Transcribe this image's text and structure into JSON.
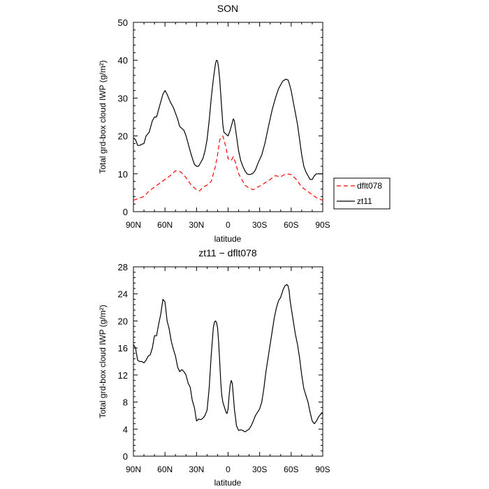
{
  "chart_data": [
    {
      "type": "line",
      "title": "SON",
      "xlabel": "latitude",
      "ylabel": "Total grd-box cloud IWP (g/m²)",
      "xlim": [
        -90,
        90
      ],
      "ylim": [
        0,
        50
      ],
      "xticks": [
        -90,
        -60,
        -30,
        0,
        30,
        60,
        90
      ],
      "xtick_labels": [
        "90N",
        "60N",
        "30N",
        "0",
        "30S",
        "60S",
        "90S"
      ],
      "yticks": [
        0,
        10,
        20,
        30,
        40,
        50
      ],
      "ytick_labels": [
        "0",
        "10",
        "20",
        "30",
        "40",
        "50"
      ],
      "legend_position": "right",
      "series": [
        {
          "name": "dflt078",
          "color": "#ff0000",
          "dash": "dashed",
          "x": [
            -90,
            -85,
            -80,
            -75,
            -70,
            -65,
            -60,
            -55,
            -50,
            -45,
            -40,
            -35,
            -30,
            -27,
            -24,
            -20,
            -16,
            -12,
            -10,
            -8,
            -5,
            -2,
            0,
            3,
            5,
            7,
            10,
            13,
            16,
            20,
            24,
            28,
            32,
            36,
            40,
            45,
            50,
            55,
            60,
            65,
            70,
            75,
            80,
            85,
            90
          ],
          "y": [
            3,
            3.5,
            4,
            5.5,
            6.5,
            7.5,
            8.5,
            9.5,
            10.8,
            10.5,
            9,
            7,
            5.8,
            5.5,
            6.5,
            7,
            8,
            12,
            15,
            19,
            20,
            17,
            14,
            13.5,
            14.5,
            13,
            10,
            8.5,
            7,
            6.2,
            5.8,
            6.5,
            7,
            7.8,
            8.5,
            9.5,
            9.2,
            10,
            9.8,
            8.5,
            6.5,
            5.5,
            4.5,
            3.5,
            3
          ]
        },
        {
          "name": "zt11",
          "color": "#000000",
          "dash": "solid",
          "x": [
            -90,
            -88,
            -86,
            -84,
            -82,
            -80,
            -78,
            -75,
            -72,
            -70,
            -68,
            -65,
            -62,
            -60,
            -58,
            -55,
            -52,
            -50,
            -48,
            -46,
            -44,
            -42,
            -40,
            -38,
            -35,
            -32,
            -30,
            -28,
            -26,
            -24,
            -22,
            -20,
            -18,
            -16,
            -14,
            -12,
            -11,
            -10,
            -9,
            -8,
            -7,
            -6,
            -5,
            -4,
            -2,
            0,
            2,
            4,
            5,
            6,
            8,
            10,
            12,
            14,
            16,
            18,
            20,
            22,
            24,
            26,
            28,
            30,
            32,
            35,
            38,
            40,
            42,
            45,
            48,
            50,
            52,
            55,
            57,
            58,
            60,
            62,
            64,
            66,
            68,
            70,
            72,
            74,
            76,
            78,
            80,
            82,
            84,
            86,
            88,
            90
          ],
          "y": [
            19.5,
            19,
            17.5,
            17.5,
            17.8,
            18,
            20,
            21,
            24,
            25,
            25,
            28,
            31,
            32,
            31,
            29,
            27.5,
            26,
            24.5,
            22.5,
            22,
            21.5,
            20,
            18,
            15,
            12.5,
            12,
            12,
            13,
            14,
            16,
            19,
            24,
            30,
            35,
            39,
            40,
            39.8,
            38,
            35,
            31,
            27,
            23,
            21,
            20.5,
            20,
            21.5,
            23.5,
            24.5,
            24,
            20,
            16,
            13.5,
            12,
            10.8,
            10,
            9.8,
            9.9,
            10.2,
            11,
            12.5,
            13.8,
            15,
            18,
            22,
            24.5,
            27,
            30,
            32.5,
            33.5,
            34.5,
            35,
            34.8,
            34,
            32,
            29,
            26,
            23,
            19,
            15,
            12,
            10.5,
            9.5,
            8.5,
            8.5,
            9.5,
            10,
            10,
            10,
            10
          ]
        }
      ]
    },
    {
      "type": "line",
      "title": "zt11 − dflt078",
      "xlabel": "latitude",
      "ylabel": "Total grd-box cloud IWP (g/m²)",
      "xlim": [
        -90,
        90
      ],
      "ylim": [
        0,
        28
      ],
      "xticks": [
        -90,
        -60,
        -30,
        0,
        30,
        60,
        90
      ],
      "xtick_labels": [
        "90N",
        "60N",
        "30N",
        "0",
        "30S",
        "60S",
        "90S"
      ],
      "yticks": [
        0,
        4,
        8,
        12,
        16,
        20,
        24,
        28
      ],
      "ytick_labels": [
        "0",
        "4",
        "8",
        "12",
        "16",
        "20",
        "24",
        "28"
      ],
      "series": [
        {
          "color": "#000000",
          "dash": "solid",
          "x": [
            -90,
            -88,
            -86,
            -84,
            -82,
            -80,
            -78,
            -76,
            -74,
            -72,
            -70,
            -68,
            -66,
            -64,
            -62,
            -60,
            -58,
            -56,
            -54,
            -52,
            -50,
            -48,
            -46,
            -44,
            -42,
            -40,
            -38,
            -36,
            -34,
            -32,
            -30,
            -28,
            -26,
            -24,
            -22,
            -20,
            -18,
            -16,
            -14,
            -13,
            -12,
            -11,
            -10,
            -9,
            -8,
            -7,
            -6,
            -5,
            -4,
            -3,
            -2,
            -1,
            0,
            1,
            2,
            3,
            4,
            5,
            6,
            7,
            8,
            10,
            12,
            14,
            16,
            18,
            20,
            22,
            24,
            26,
            28,
            30,
            32,
            34,
            36,
            38,
            40,
            42,
            44,
            46,
            48,
            50,
            52,
            54,
            56,
            57,
            58,
            59,
            60,
            62,
            64,
            66,
            68,
            70,
            72,
            74,
            76,
            78,
            80,
            82,
            84,
            86,
            88,
            90
          ],
          "y": [
            16.5,
            16,
            14.2,
            14,
            14,
            13.8,
            14.2,
            14.8,
            15,
            16,
            17.8,
            17.8,
            19.5,
            21,
            23.2,
            22.8,
            20,
            18.8,
            17,
            15.8,
            14.8,
            13.2,
            12.5,
            12.8,
            12.5,
            12,
            10.8,
            10.2,
            8.2,
            7.2,
            5.2,
            5.5,
            5.4,
            5.6,
            6,
            6.8,
            10,
            15,
            19,
            19.8,
            20,
            19.8,
            19,
            17,
            14,
            11,
            9,
            8,
            7.5,
            7,
            6.5,
            6.3,
            7,
            9,
            10.5,
            11.2,
            10.8,
            9,
            7,
            5.8,
            4.5,
            3.8,
            3.9,
            3.8,
            3.6,
            3.8,
            4,
            4.5,
            5.2,
            6,
            6.5,
            7,
            8,
            10,
            12.5,
            14.5,
            16.5,
            18.5,
            20.5,
            22,
            23,
            23.5,
            24.5,
            25.2,
            25.4,
            25.2,
            24.5,
            23,
            22,
            20,
            18,
            16.5,
            14.5,
            12,
            10,
            9,
            8,
            6.5,
            5.2,
            4.8,
            5.2,
            5.8,
            6.2,
            6.4
          ]
        }
      ]
    }
  ]
}
